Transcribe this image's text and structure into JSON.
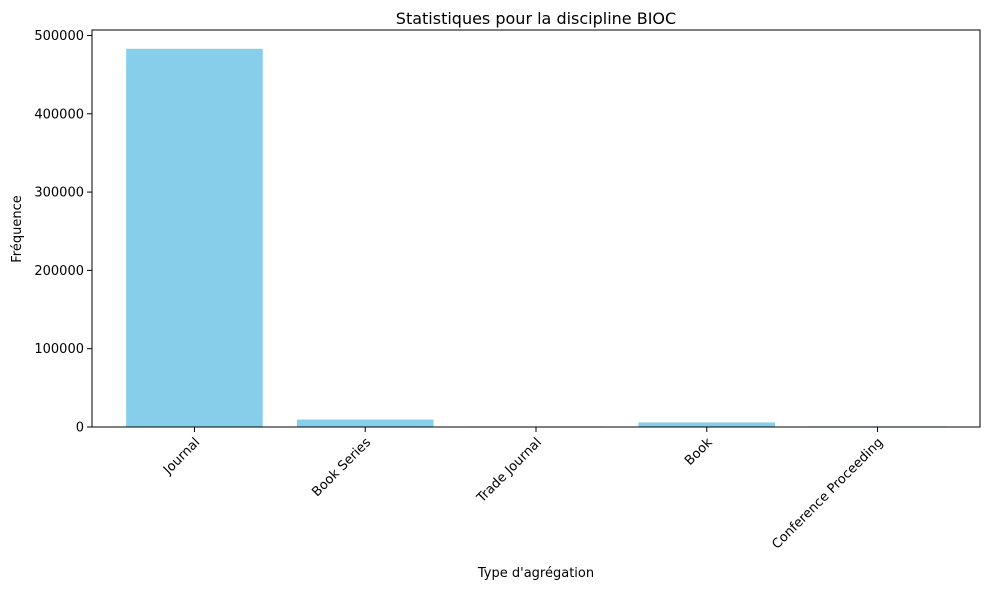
{
  "chart_data": {
    "type": "bar",
    "title": "Statistiques pour la discipline BIOC",
    "xlabel": "Type d'agrégation",
    "ylabel": "Fréquence",
    "categories": [
      "Journal",
      "Book Series",
      "Trade Journal",
      "Book",
      "Conference Proceeding"
    ],
    "values": [
      483000,
      9500,
      700,
      5800,
      800
    ],
    "ylim": [
      0,
      507000
    ],
    "yticks": [
      0,
      100000,
      200000,
      300000,
      400000,
      500000
    ],
    "ytick_labels": [
      "0",
      "100000",
      "200000",
      "300000",
      "400000",
      "500000"
    ],
    "bar_color": "#87ceeb",
    "grid": false,
    "legend": "none"
  }
}
